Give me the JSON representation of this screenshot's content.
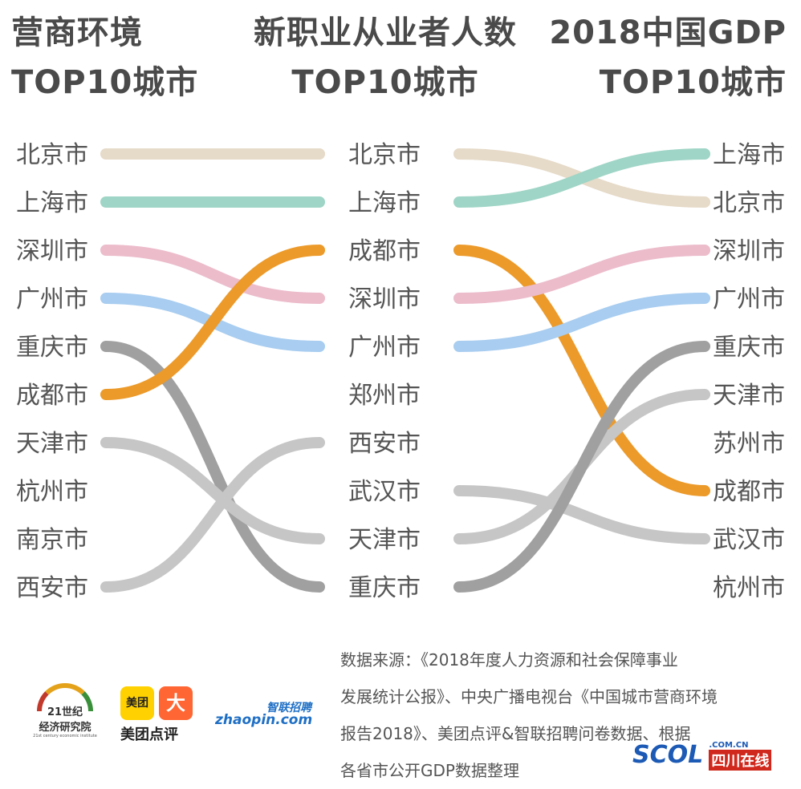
{
  "chart_data": {
    "type": "bump",
    "columns": [
      {
        "title_line1": "营商环境",
        "title_line2": "TOP10城市",
        "cities": [
          "北京市",
          "上海市",
          "深圳市",
          "广州市",
          "重庆市",
          "成都市",
          "天津市",
          "杭州市",
          "南京市",
          "西安市"
        ]
      },
      {
        "title_line1": "新职业从业者人数",
        "title_line2": "TOP10城市",
        "cities": [
          "北京市",
          "上海市",
          "成都市",
          "深圳市",
          "广州市",
          "郑州市",
          "西安市",
          "武汉市",
          "天津市",
          "重庆市"
        ]
      },
      {
        "title_line1": "2018中国GDP",
        "title_line2": "TOP10城市",
        "cities": [
          "上海市",
          "北京市",
          "深圳市",
          "广州市",
          "重庆市",
          "天津市",
          "苏州市",
          "成都市",
          "武汉市",
          "杭州市"
        ]
      }
    ],
    "links": [
      {
        "city": "北京市",
        "from_col": 0,
        "from_rank": 1,
        "to_col": 1,
        "to_rank": 1,
        "color": "#e6dac8"
      },
      {
        "city": "上海市",
        "from_col": 0,
        "from_rank": 2,
        "to_col": 1,
        "to_rank": 2,
        "color": "#9fd5c6"
      },
      {
        "city": "深圳市",
        "from_col": 0,
        "from_rank": 3,
        "to_col": 1,
        "to_rank": 4,
        "color": "#ecbccb"
      },
      {
        "city": "广州市",
        "from_col": 0,
        "from_rank": 4,
        "to_col": 1,
        "to_rank": 5,
        "color": "#a8cdf0"
      },
      {
        "city": "重庆市",
        "from_col": 0,
        "from_rank": 5,
        "to_col": 1,
        "to_rank": 10,
        "color": "#a0a0a0"
      },
      {
        "city": "成都市",
        "from_col": 0,
        "from_rank": 6,
        "to_col": 1,
        "to_rank": 3,
        "color": "#ec9a2a"
      },
      {
        "city": "天津市",
        "from_col": 0,
        "from_rank": 7,
        "to_col": 1,
        "to_rank": 9,
        "color": "#c6c6c6"
      },
      {
        "city": "西安市",
        "from_col": 0,
        "from_rank": 10,
        "to_col": 1,
        "to_rank": 7,
        "color": "#c6c6c6"
      },
      {
        "city": "北京市",
        "from_col": 1,
        "from_rank": 1,
        "to_col": 2,
        "to_rank": 2,
        "color": "#e6dac8"
      },
      {
        "city": "上海市",
        "from_col": 1,
        "from_rank": 2,
        "to_col": 2,
        "to_rank": 1,
        "color": "#9fd5c6"
      },
      {
        "city": "成都市",
        "from_col": 1,
        "from_rank": 3,
        "to_col": 2,
        "to_rank": 8,
        "color": "#ec9a2a"
      },
      {
        "city": "深圳市",
        "from_col": 1,
        "from_rank": 4,
        "to_col": 2,
        "to_rank": 3,
        "color": "#ecbccb"
      },
      {
        "city": "广州市",
        "from_col": 1,
        "from_rank": 5,
        "to_col": 2,
        "to_rank": 4,
        "color": "#a8cdf0"
      },
      {
        "city": "武汉市",
        "from_col": 1,
        "from_rank": 8,
        "to_col": 2,
        "to_rank": 9,
        "color": "#c6c6c6"
      },
      {
        "city": "天津市",
        "from_col": 1,
        "from_rank": 9,
        "to_col": 2,
        "to_rank": 6,
        "color": "#c6c6c6"
      },
      {
        "city": "重庆市",
        "from_col": 1,
        "from_rank": 10,
        "to_col": 2,
        "to_rank": 5,
        "color": "#a0a0a0"
      }
    ]
  },
  "source": {
    "line1": "数据来源：《2018年度人力资源和社会保障事业",
    "line2": "发展统计公报》、中央广播电视台《中国城市营商环境",
    "line3": "报告2018》、美团点评&智联招聘问卷数据、根据",
    "line4": "各省市公开GDP数据整理"
  },
  "logos": {
    "logo_21": {
      "line1": "21世纪",
      "line2": "经济研究院",
      "line3": "21st century economic institute"
    },
    "meituan": {
      "box1": "美团",
      "box2": "大",
      "label": "美团点评"
    },
    "zhaopin": {
      "cn": "智联招聘",
      "en": "zhaopin.com"
    },
    "scol": {
      "main": "SCOL",
      "domain": ".COM.CN",
      "cn": "四川在线"
    }
  }
}
